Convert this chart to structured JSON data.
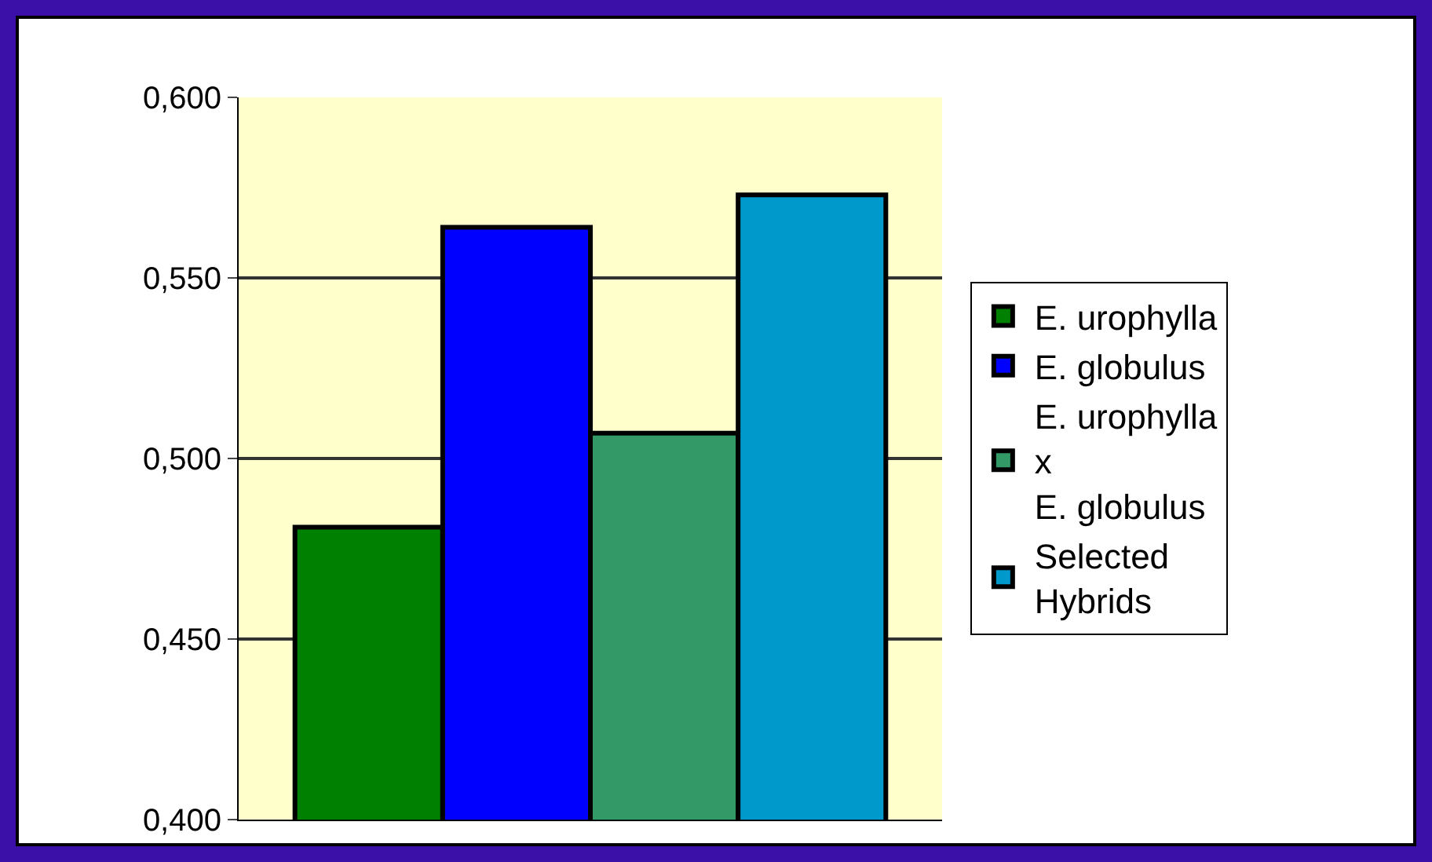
{
  "chart_data": {
    "type": "bar",
    "categories": [
      null
    ],
    "series": [
      {
        "name": "E. urophylla",
        "color": "#008000",
        "values": [
          0.481
        ]
      },
      {
        "name": "E. globulus",
        "color": "#0000ff",
        "values": [
          0.564
        ]
      },
      {
        "name": "E. urophylla\nx\nE. globulus",
        "color": "#339966",
        "values": [
          0.507
        ]
      },
      {
        "name": "Selected\nHybrids",
        "color": "#0099cc",
        "values": [
          0.573
        ]
      }
    ],
    "ylim": [
      0.4,
      0.6
    ],
    "yticks": [
      {
        "value": 0.4,
        "label": "0,400"
      },
      {
        "value": 0.45,
        "label": "0,450"
      },
      {
        "value": 0.5,
        "label": "0,500"
      },
      {
        "value": 0.55,
        "label": "0,550"
      },
      {
        "value": 0.6,
        "label": "0,600"
      }
    ],
    "grid": "y",
    "legend": "right"
  }
}
